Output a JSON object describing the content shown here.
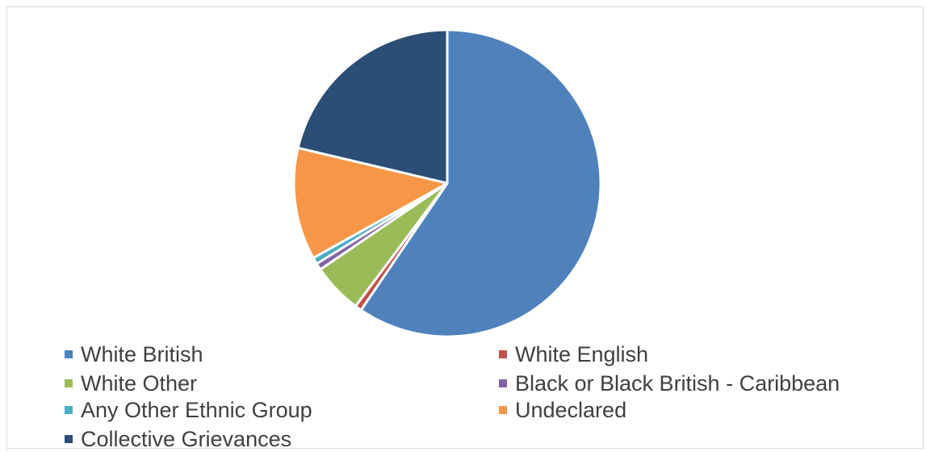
{
  "chart_data": {
    "type": "pie",
    "title": "",
    "legend_position": "bottom",
    "slices": [
      {
        "label": "White British",
        "value": 59.5,
        "color": "#4F81BD"
      },
      {
        "label": "White English",
        "value": 0.7,
        "color": "#C0504D"
      },
      {
        "label": "White Other",
        "value": 5.3,
        "color": "#9BBB59"
      },
      {
        "label": "Black or Black British - Caribbean",
        "value": 0.7,
        "color": "#8064A2"
      },
      {
        "label": "Any Other Ethnic Group",
        "value": 0.7,
        "color": "#4BACC6"
      },
      {
        "label": "Undeclared",
        "value": 11.8,
        "color": "#F79646"
      },
      {
        "label": "Collective Grievances",
        "value": 21.3,
        "color": "#2C4D75"
      }
    ]
  }
}
